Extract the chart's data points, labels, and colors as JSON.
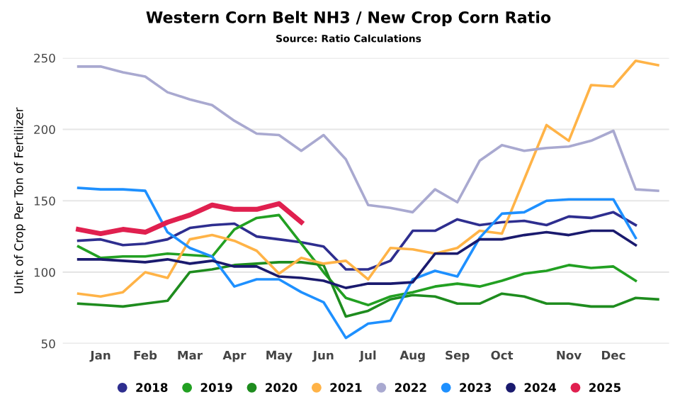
{
  "chart_data": {
    "type": "line",
    "title": "Western Corn Belt NH3 / New Crop Corn Ratio",
    "subtitle": "Source: Ratio Calculations",
    "ylabel": "Unit of Crop Per Ton of Fertilizer",
    "categories": [
      null,
      "Jan",
      null,
      "Feb",
      null,
      "Mar",
      null,
      "Apr",
      null,
      "May",
      null,
      "Jun",
      null,
      "Jul",
      null,
      "Aug",
      null,
      "Sep",
      null,
      "Oct",
      null,
      null,
      "Nov",
      null,
      "Dec",
      null,
      null
    ],
    "ylim": [
      50,
      250
    ],
    "yticks": [
      50,
      100,
      150,
      200,
      250
    ],
    "grid": "y",
    "legend": "bottom",
    "marker": "none",
    "line_style": "solid",
    "series": [
      {
        "name": "2018",
        "color": "#2e2e8f",
        "values": [
          122,
          123,
          119,
          120,
          123,
          131,
          133,
          134,
          125,
          123,
          121,
          118,
          102,
          102,
          108,
          129,
          129,
          137,
          133,
          135,
          136,
          133,
          139,
          138,
          142,
          133,
          null
        ]
      },
      {
        "name": "2019",
        "color": "#22a022",
        "values": [
          118,
          110,
          111,
          111,
          113,
          112,
          111,
          130,
          138,
          140,
          120,
          100,
          82,
          77,
          83,
          86,
          90,
          92,
          90,
          94,
          99,
          101,
          105,
          103,
          104,
          94,
          null
        ]
      },
      {
        "name": "2020",
        "color": "#1e8c1e",
        "values": [
          78,
          77,
          76,
          78,
          80,
          100,
          102,
          105,
          106,
          107,
          107,
          105,
          69,
          73,
          81,
          84,
          83,
          78,
          78,
          85,
          83,
          78,
          78,
          76,
          76,
          82,
          81
        ]
      },
      {
        "name": "2021",
        "color": "#ffb347",
        "values": [
          85,
          83,
          86,
          100,
          96,
          123,
          126,
          122,
          115,
          99,
          110,
          106,
          108,
          95,
          117,
          116,
          113,
          117,
          129,
          127,
          165,
          203,
          192,
          231,
          230,
          248,
          245
        ]
      },
      {
        "name": "2022",
        "color": "#a9a9d0",
        "values": [
          244,
          244,
          240,
          237,
          226,
          221,
          217,
          206,
          197,
          196,
          185,
          196,
          179,
          147,
          145,
          142,
          158,
          149,
          178,
          189,
          185,
          187,
          188,
          192,
          199,
          158,
          157
        ]
      },
      {
        "name": "2023",
        "color": "#1e90ff",
        "values": [
          159,
          158,
          158,
          157,
          128,
          117,
          111,
          90,
          95,
          95,
          86,
          79,
          54,
          64,
          66,
          95,
          101,
          97,
          124,
          141,
          142,
          150,
          151,
          151,
          151,
          124,
          null
        ]
      },
      {
        "name": "2024",
        "color": "#1a1a6e",
        "values": [
          109,
          109,
          108,
          107,
          109,
          106,
          108,
          104,
          104,
          97,
          96,
          94,
          89,
          92,
          92,
          93,
          113,
          113,
          123,
          123,
          126,
          128,
          126,
          129,
          129,
          119,
          null
        ]
      },
      {
        "name": "2025",
        "color": "#e0204f",
        "values": [
          130,
          127,
          130,
          128,
          135,
          140,
          147,
          144,
          144,
          148,
          135,
          null,
          null,
          null,
          null,
          null,
          null,
          null,
          null,
          null,
          null,
          null,
          null,
          null,
          null,
          null,
          null
        ]
      }
    ]
  }
}
